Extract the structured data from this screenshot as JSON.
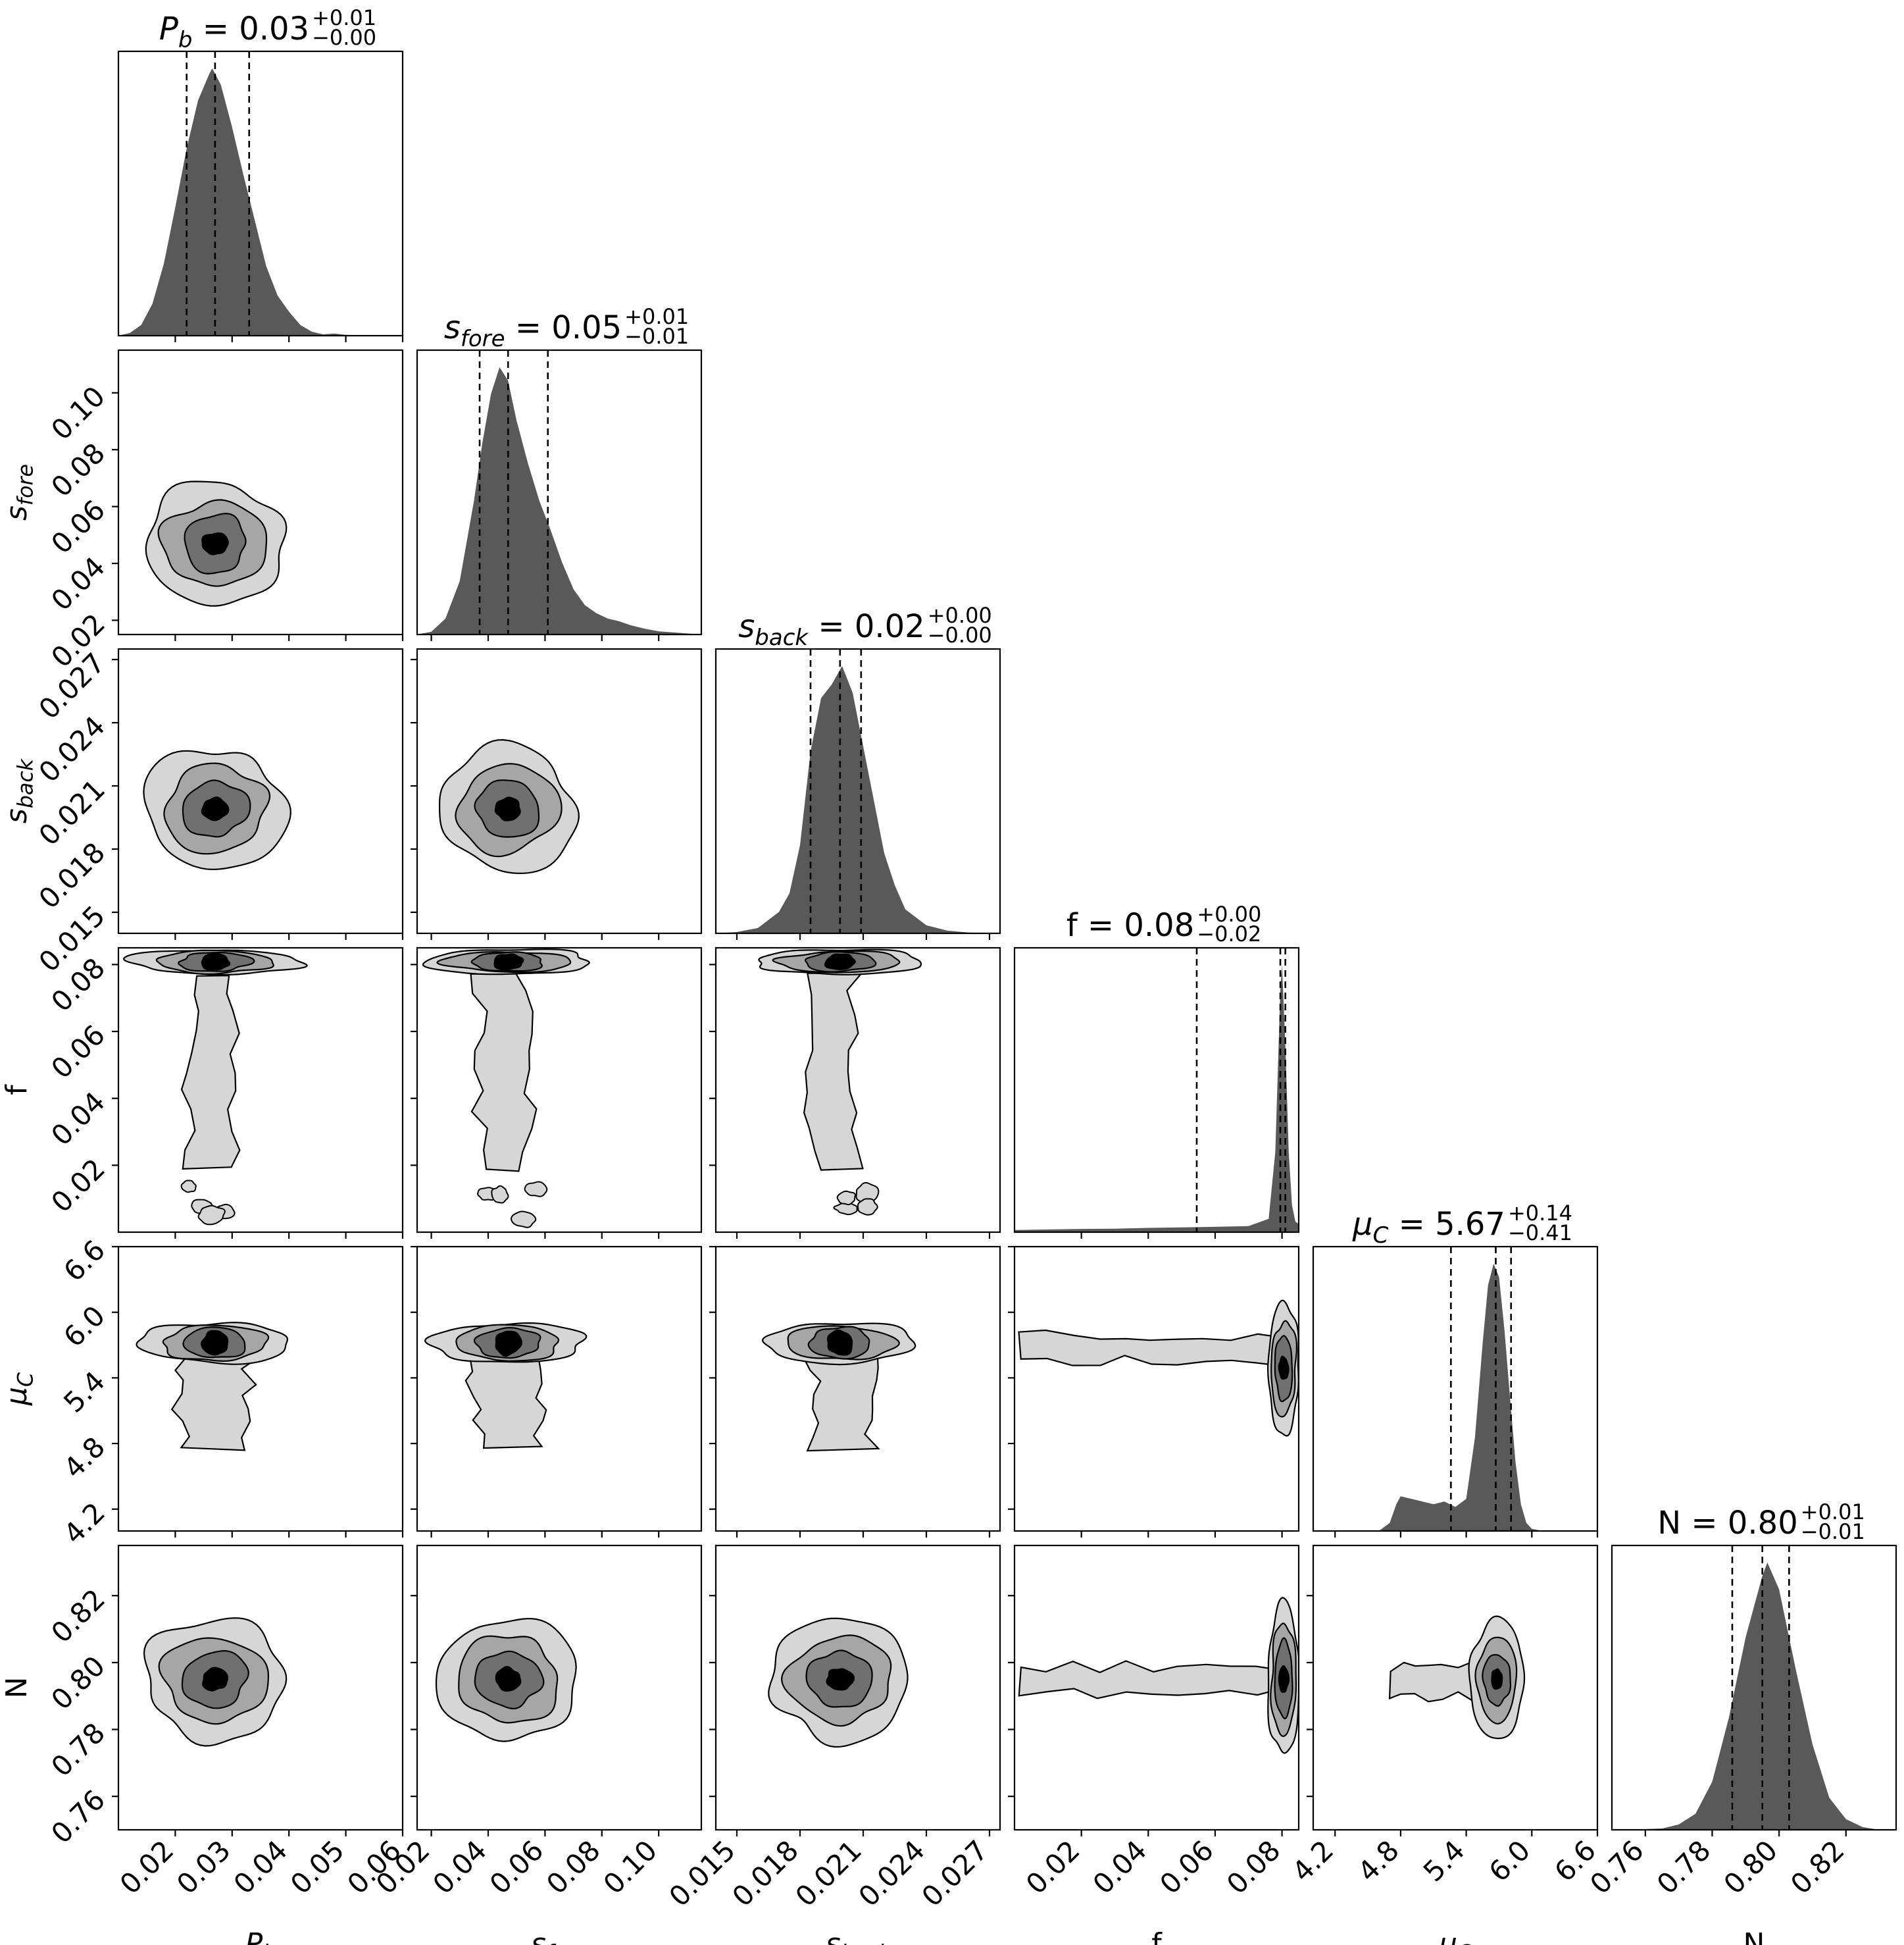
{
  "chart_data": {
    "type": "corner",
    "params": [
      {
        "key": "Pb",
        "sym": "P",
        "sub": "b",
        "italic": true,
        "range": [
          0.01,
          0.06
        ],
        "ticks": [
          0.02,
          0.03,
          0.04,
          0.05,
          0.06
        ],
        "tick_labels": [
          "0.02",
          "0.03",
          "0.04",
          "0.05",
          "0.06"
        ],
        "title_value": "0.03",
        "err_plus": "+0.01",
        "err_minus": "−0.00",
        "quantiles": [
          0.022,
          0.027,
          0.033
        ],
        "density": [
          [
            0.01,
            0.0
          ],
          [
            0.012,
            0.01
          ],
          [
            0.014,
            0.04
          ],
          [
            0.016,
            0.12
          ],
          [
            0.018,
            0.27
          ],
          [
            0.02,
            0.48
          ],
          [
            0.022,
            0.7
          ],
          [
            0.024,
            0.88
          ],
          [
            0.026,
            0.98
          ],
          [
            0.0265,
            1.0
          ],
          [
            0.028,
            0.94
          ],
          [
            0.03,
            0.78
          ],
          [
            0.032,
            0.6
          ],
          [
            0.034,
            0.43
          ],
          [
            0.036,
            0.26
          ],
          [
            0.038,
            0.15
          ],
          [
            0.04,
            0.09
          ],
          [
            0.042,
            0.04
          ],
          [
            0.044,
            0.015
          ],
          [
            0.046,
            0.005
          ],
          [
            0.048,
            0.008
          ],
          [
            0.05,
            0.003
          ],
          [
            0.054,
            0.0
          ],
          [
            0.06,
            0.0
          ]
        ]
      },
      {
        "key": "sfore",
        "sym": "s",
        "sub": "fore",
        "italic": true,
        "range": [
          0.015,
          0.115
        ],
        "ticks": [
          0.02,
          0.04,
          0.06,
          0.08,
          0.1
        ],
        "tick_labels": [
          "0.02",
          "0.04",
          "0.06",
          "0.08",
          "0.10"
        ],
        "title_value": "0.05",
        "err_plus": "+0.01",
        "err_minus": "−0.01",
        "quantiles": [
          0.037,
          0.047,
          0.061
        ],
        "density": [
          [
            0.015,
            0.0
          ],
          [
            0.02,
            0.01
          ],
          [
            0.025,
            0.06
          ],
          [
            0.03,
            0.2
          ],
          [
            0.035,
            0.5
          ],
          [
            0.038,
            0.72
          ],
          [
            0.041,
            0.9
          ],
          [
            0.044,
            1.0
          ],
          [
            0.047,
            0.95
          ],
          [
            0.05,
            0.8
          ],
          [
            0.054,
            0.64
          ],
          [
            0.058,
            0.5
          ],
          [
            0.062,
            0.39
          ],
          [
            0.066,
            0.27
          ],
          [
            0.07,
            0.17
          ],
          [
            0.074,
            0.11
          ],
          [
            0.078,
            0.08
          ],
          [
            0.082,
            0.06
          ],
          [
            0.086,
            0.05
          ],
          [
            0.09,
            0.035
          ],
          [
            0.095,
            0.022
          ],
          [
            0.1,
            0.012
          ],
          [
            0.105,
            0.008
          ],
          [
            0.11,
            0.004
          ],
          [
            0.115,
            0.0
          ]
        ]
      },
      {
        "key": "sback",
        "sym": "s",
        "sub": "back",
        "italic": true,
        "range": [
          0.014,
          0.0275
        ],
        "ticks": [
          0.015,
          0.018,
          0.021,
          0.024,
          0.027
        ],
        "tick_labels": [
          "0.015",
          "0.018",
          "0.021",
          "0.024",
          "0.027"
        ],
        "title_value": "0.02",
        "err_plus": "+0.00",
        "err_minus": "−0.00",
        "quantiles": [
          0.0185,
          0.0199,
          0.0209
        ],
        "density": [
          [
            0.014,
            0.0
          ],
          [
            0.015,
            0.005
          ],
          [
            0.016,
            0.02
          ],
          [
            0.017,
            0.08
          ],
          [
            0.0175,
            0.15
          ],
          [
            0.018,
            0.33
          ],
          [
            0.0185,
            0.68
          ],
          [
            0.019,
            0.88
          ],
          [
            0.0195,
            0.93
          ],
          [
            0.02,
            1.0
          ],
          [
            0.0205,
            0.9
          ],
          [
            0.021,
            0.7
          ],
          [
            0.0215,
            0.5
          ],
          [
            0.022,
            0.3
          ],
          [
            0.0225,
            0.18
          ],
          [
            0.023,
            0.09
          ],
          [
            0.024,
            0.03
          ],
          [
            0.025,
            0.01
          ],
          [
            0.026,
            0.003
          ],
          [
            0.0275,
            0.0
          ]
        ]
      },
      {
        "key": "f",
        "sym": "f",
        "sub": "",
        "italic": false,
        "range": [
          0.0,
          0.085
        ],
        "ticks": [
          0.02,
          0.04,
          0.06,
          0.08
        ],
        "tick_labels": [
          "0.02",
          "0.04",
          "0.06",
          "0.08"
        ],
        "title_value": "0.08",
        "err_plus": "+0.00",
        "err_minus": "−0.02",
        "quantiles": [
          0.0545,
          0.0795,
          0.081
        ],
        "density": [
          [
            0.0,
            0.008
          ],
          [
            0.01,
            0.01
          ],
          [
            0.02,
            0.012
          ],
          [
            0.03,
            0.013
          ],
          [
            0.04,
            0.016
          ],
          [
            0.05,
            0.018
          ],
          [
            0.06,
            0.02
          ],
          [
            0.07,
            0.023
          ],
          [
            0.076,
            0.05
          ],
          [
            0.078,
            0.3
          ],
          [
            0.0795,
            0.9
          ],
          [
            0.08,
            1.0
          ],
          [
            0.081,
            0.7
          ],
          [
            0.082,
            0.3
          ],
          [
            0.083,
            0.1
          ],
          [
            0.084,
            0.04
          ],
          [
            0.085,
            0.03
          ]
        ]
      },
      {
        "key": "muC",
        "sym": "μ",
        "sub": "C",
        "italic": true,
        "range": [
          4.0,
          6.6
        ],
        "ticks": [
          4.2,
          4.8,
          5.4,
          6.0,
          6.6
        ],
        "tick_labels": [
          "4.2",
          "4.8",
          "5.4",
          "6.0",
          "6.6"
        ],
        "title_value": "5.67",
        "err_plus": "+0.14",
        "err_minus": "−0.41",
        "quantiles": [
          5.26,
          5.67,
          5.81
        ],
        "density": [
          [
            4.6,
            0.0
          ],
          [
            4.7,
            0.03
          ],
          [
            4.76,
            0.1
          ],
          [
            4.8,
            0.13
          ],
          [
            4.9,
            0.12
          ],
          [
            5.0,
            0.11
          ],
          [
            5.1,
            0.1
          ],
          [
            5.2,
            0.11
          ],
          [
            5.3,
            0.09
          ],
          [
            5.4,
            0.12
          ],
          [
            5.48,
            0.35
          ],
          [
            5.55,
            0.7
          ],
          [
            5.6,
            0.92
          ],
          [
            5.65,
            1.0
          ],
          [
            5.7,
            0.95
          ],
          [
            5.75,
            0.75
          ],
          [
            5.8,
            0.5
          ],
          [
            5.85,
            0.26
          ],
          [
            5.9,
            0.1
          ],
          [
            5.95,
            0.03
          ],
          [
            6.0,
            0.008
          ],
          [
            6.1,
            0.0
          ]
        ]
      },
      {
        "key": "N",
        "sym": "N",
        "sub": "",
        "italic": false,
        "range": [
          0.75,
          0.835
        ],
        "ticks": [
          0.76,
          0.78,
          0.8,
          0.82
        ],
        "tick_labels": [
          "0.76",
          "0.78",
          "0.80",
          "0.82"
        ],
        "title_value": "0.80",
        "err_plus": "+0.01",
        "err_minus": "−0.01",
        "quantiles": [
          0.786,
          0.795,
          0.803
        ],
        "density": [
          [
            0.755,
            0.0
          ],
          [
            0.765,
            0.005
          ],
          [
            0.77,
            0.02
          ],
          [
            0.775,
            0.06
          ],
          [
            0.78,
            0.18
          ],
          [
            0.785,
            0.42
          ],
          [
            0.79,
            0.72
          ],
          [
            0.795,
            0.95
          ],
          [
            0.7965,
            1.0
          ],
          [
            0.8,
            0.9
          ],
          [
            0.805,
            0.6
          ],
          [
            0.81,
            0.32
          ],
          [
            0.815,
            0.12
          ],
          [
            0.82,
            0.04
          ],
          [
            0.825,
            0.01
          ],
          [
            0.83,
            0.0
          ]
        ]
      }
    ],
    "correlation_shapes": {
      "gaussian_pairs": [
        [
          1,
          0
        ],
        [
          2,
          0
        ],
        [
          2,
          1
        ],
        [
          5,
          0
        ],
        [
          5,
          1
        ],
        [
          5,
          2
        ]
      ],
      "f_tail_pairs": [
        [
          3,
          0
        ],
        [
          3,
          1
        ],
        [
          3,
          2
        ]
      ],
      "mu_tail_pairs": [
        [
          4,
          0
        ],
        [
          4,
          1
        ],
        [
          4,
          2
        ]
      ],
      "f_vertical_pairs": [
        [
          4,
          3
        ],
        [
          5,
          3
        ]
      ],
      "mu_bimodal_pairs": [
        [
          5,
          4
        ]
      ]
    },
    "contour_fill_colors": [
      "#d6d6d6",
      "#a6a6a6",
      "#707070",
      "#000000"
    ],
    "histogram_color": "#595959"
  }
}
